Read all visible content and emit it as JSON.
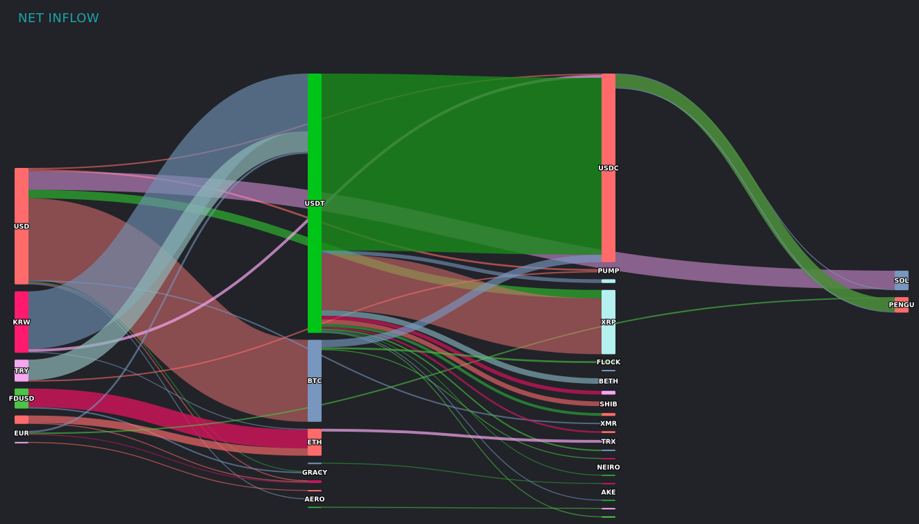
{
  "title": "NET INFLOW",
  "chart_data": {
    "type": "sankey",
    "title": "NET INFLOW",
    "nodes": [
      {
        "id": "usd",
        "label": "USD",
        "column": 0,
        "color": "#ff6b6b"
      },
      {
        "id": "krw",
        "label": "KRW",
        "column": 0,
        "color": "#ff1a6e"
      },
      {
        "id": "try",
        "label": "TRY",
        "column": 0,
        "color": "#f5a7f0"
      },
      {
        "id": "fdusd",
        "label": "FDUSD",
        "column": 0,
        "color": "#4cc445"
      },
      {
        "id": "src5",
        "label": "",
        "column": 0,
        "color": "#ff6b6b"
      },
      {
        "id": "eur",
        "label": "EUR",
        "column": 0,
        "color": "#b4f0f0"
      },
      {
        "id": "src7",
        "label": "",
        "column": 0,
        "color": "#f5a7f0"
      },
      {
        "id": "usdt",
        "label": "USDT",
        "column": 1,
        "color": "#00c518"
      },
      {
        "id": "btc",
        "label": "BTC",
        "column": 1,
        "color": "#7896be"
      },
      {
        "id": "eth",
        "label": "ETH",
        "column": 1,
        "color": "#ff6b6b"
      },
      {
        "id": "m4",
        "label": "",
        "column": 1,
        "color": "#7896be"
      },
      {
        "id": "gracy",
        "label": "GRACY",
        "column": 1,
        "color": "#5ca8a8"
      },
      {
        "id": "m6",
        "label": "",
        "column": 1,
        "color": "#c2185b"
      },
      {
        "id": "m7",
        "label": "",
        "column": 1,
        "color": "#ff6b6b"
      },
      {
        "id": "aero",
        "label": "AERO",
        "column": 1,
        "color": "#b4f0f0"
      },
      {
        "id": "m9",
        "label": "",
        "column": 1,
        "color": "#2e9e3a"
      },
      {
        "id": "usdc",
        "label": "USDC",
        "column": 2,
        "color": "#ff6b6b"
      },
      {
        "id": "pump",
        "label": "PUMP",
        "column": 2,
        "color": "#ff6b6b"
      },
      {
        "id": "t3",
        "label": "",
        "column": 2,
        "color": "#b4f0f0"
      },
      {
        "id": "xrp",
        "label": "XRP",
        "column": 2,
        "color": "#b4f0f0"
      },
      {
        "id": "flock",
        "label": "FLOCK",
        "column": 2,
        "color": "#4cc445"
      },
      {
        "id": "t6",
        "label": "",
        "column": 2,
        "color": "#7896be"
      },
      {
        "id": "beth",
        "label": "BETH",
        "column": 2,
        "color": "#7896be"
      },
      {
        "id": "t8",
        "label": "",
        "column": 2,
        "color": "#f5a7f0"
      },
      {
        "id": "shib",
        "label": "SHIB",
        "column": 2,
        "color": "#ff6b6b"
      },
      {
        "id": "t10",
        "label": "",
        "column": 2,
        "color": "#ff6b6b"
      },
      {
        "id": "xmr",
        "label": "XMR",
        "column": 2,
        "color": "#7896be"
      },
      {
        "id": "t12",
        "label": "",
        "column": 2,
        "color": "#ff6b6b"
      },
      {
        "id": "trx",
        "label": "TRX",
        "column": 2,
        "color": "#f5a7f0"
      },
      {
        "id": "t14",
        "label": "",
        "column": 2,
        "color": "#7896be"
      },
      {
        "id": "t15",
        "label": "",
        "column": 2,
        "color": "#c2185b"
      },
      {
        "id": "neiro",
        "label": "NEIRO",
        "column": 2,
        "color": "#4cc445"
      },
      {
        "id": "t17",
        "label": "",
        "column": 2,
        "color": "#2e9e3a"
      },
      {
        "id": "t18",
        "label": "",
        "column": 2,
        "color": "#c2185b"
      },
      {
        "id": "ake",
        "label": "AKE",
        "column": 2,
        "color": "#b4f0f0"
      },
      {
        "id": "t20",
        "label": "",
        "column": 2,
        "color": "#2e9e3a"
      },
      {
        "id": "t21",
        "label": "",
        "column": 2,
        "color": "#f5a7f0"
      },
      {
        "id": "t22",
        "label": "",
        "column": 2,
        "color": "#4cc445"
      },
      {
        "id": "sol",
        "label": "SOL",
        "column": 3,
        "color": "#7896be"
      },
      {
        "id": "pengu",
        "label": "PENGU",
        "column": 3,
        "color": "#ff6b6b"
      }
    ],
    "links": [
      {
        "source": "usd",
        "target": "btc",
        "value": 88,
        "color": "#e07070",
        "opacity": 0.55
      },
      {
        "source": "usd",
        "target": "sol",
        "value": 20,
        "color": "#f0a0f0",
        "opacity": 0.5
      },
      {
        "source": "usd",
        "target": "xrp",
        "value": 9,
        "color": "#2ea82e",
        "opacity": 0.75
      },
      {
        "source": "usd",
        "target": "pump",
        "value": 2,
        "color": "#ff6b6b",
        "opacity": 0.6
      },
      {
        "source": "usd",
        "target": "usdc",
        "value": 1.5,
        "color": "#ff6b6b",
        "opacity": 0.6
      },
      {
        "source": "usd",
        "target": "xmr",
        "value": 1.5,
        "color": "#7896be",
        "opacity": 0.6
      },
      {
        "source": "usd",
        "target": "gracy",
        "value": 1,
        "color": "#2e9e3a",
        "opacity": 0.6
      },
      {
        "source": "usd",
        "target": "m6",
        "value": 1,
        "color": "#ff6b6b",
        "opacity": 0.6
      },
      {
        "source": "usd",
        "target": "aero",
        "value": 1,
        "color": "#7896be",
        "opacity": 0.6
      },
      {
        "source": "krw",
        "target": "usdt",
        "value": 62,
        "color": "#6f8fb0",
        "opacity": 0.65
      },
      {
        "source": "krw",
        "target": "usdc",
        "value": 3,
        "color": "#f5a7f0",
        "opacity": 0.7
      },
      {
        "source": "krw",
        "target": "eth",
        "value": 1,
        "color": "#7896be",
        "opacity": 0.6
      },
      {
        "source": "try",
        "target": "usdt",
        "value": 22,
        "color": "#8fb8b8",
        "opacity": 0.7
      },
      {
        "source": "try",
        "target": "pump",
        "value": 1.5,
        "color": "#ff6b6b",
        "opacity": 0.6
      },
      {
        "source": "fdusd",
        "target": "eth",
        "value": 20,
        "color": "#d4145a",
        "opacity": 0.8
      },
      {
        "source": "fdusd",
        "target": "gracy",
        "value": 1.5,
        "color": "#7896be",
        "opacity": 0.6
      },
      {
        "source": "src5",
        "target": "eth",
        "value": 8,
        "color": "#ff6b6b",
        "opacity": 0.65
      },
      {
        "source": "src5",
        "target": "m6",
        "value": 1,
        "color": "#ff6b6b",
        "opacity": 0.6
      },
      {
        "source": "eur",
        "target": "usdt",
        "value": 2,
        "color": "#7896be",
        "opacity": 0.6
      },
      {
        "source": "eur",
        "target": "pengu",
        "value": 1.5,
        "color": "#4cc445",
        "opacity": 0.6
      },
      {
        "source": "eur",
        "target": "m6",
        "value": 1,
        "color": "#c2185b",
        "opacity": 0.6
      },
      {
        "source": "src7",
        "target": "m7",
        "value": 1,
        "color": "#ff6b6b",
        "opacity": 0.6
      },
      {
        "source": "usdt",
        "target": "usdc",
        "value": 190,
        "color": "#1a8a1a",
        "opacity": 0.8
      },
      {
        "source": "usdt",
        "target": "xrp",
        "value": 60,
        "color": "#e07070",
        "opacity": 0.55
      },
      {
        "source": "usdt",
        "target": "t3",
        "value": 4,
        "color": "#7896be",
        "opacity": 0.6
      },
      {
        "source": "usdt",
        "target": "beth",
        "value": 6,
        "color": "#7fa8b4",
        "opacity": 0.7
      },
      {
        "source": "usdt",
        "target": "shib",
        "value": 5,
        "color": "#ff6b6b",
        "opacity": 0.6
      },
      {
        "source": "usdt",
        "target": "t8",
        "value": 4,
        "color": "#d4145a",
        "opacity": 0.7
      },
      {
        "source": "usdt",
        "target": "t10",
        "value": 3,
        "color": "#2e9e3a",
        "opacity": 0.7
      },
      {
        "source": "usdt",
        "target": "t12",
        "value": 2,
        "color": "#c2185b",
        "opacity": 0.7
      },
      {
        "source": "usdt",
        "target": "t14",
        "value": 1.5,
        "color": "#4cc445",
        "opacity": 0.6
      },
      {
        "source": "usdt",
        "target": "t17",
        "value": 1,
        "color": "#2e9e3a",
        "opacity": 0.6
      },
      {
        "source": "usdt",
        "target": "t20",
        "value": 1,
        "color": "#7896be",
        "opacity": 0.6
      },
      {
        "source": "usdt",
        "target": "t22",
        "value": 1,
        "color": "#4cc445",
        "opacity": 0.6
      },
      {
        "source": "btc",
        "target": "usdc",
        "value": 8,
        "color": "#7896be",
        "opacity": 0.65
      },
      {
        "source": "btc",
        "target": "flock",
        "value": 2,
        "color": "#4cc445",
        "opacity": 0.6
      },
      {
        "source": "btc",
        "target": "t15",
        "value": 1,
        "color": "#4cc445",
        "opacity": 0.6
      },
      {
        "source": "eth",
        "target": "trx",
        "value": 3,
        "color": "#f5a7f0",
        "opacity": 0.7
      },
      {
        "source": "m4",
        "target": "t18",
        "value": 1,
        "color": "#2e9e3a",
        "opacity": 0.6
      },
      {
        "source": "m9",
        "target": "t21",
        "value": 1,
        "color": "#4cc445",
        "opacity": 0.6
      },
      {
        "source": "usdc",
        "target": "pengu",
        "value": 14,
        "color": "#4a8a3a",
        "opacity": 0.9
      },
      {
        "source": "usdc",
        "target": "sol",
        "value": 1,
        "color": "#7896be",
        "opacity": 0.7
      },
      {
        "source": "usdc",
        "target": "pengu",
        "value": 1,
        "color": "#7896be",
        "opacity": 0.7
      }
    ]
  }
}
